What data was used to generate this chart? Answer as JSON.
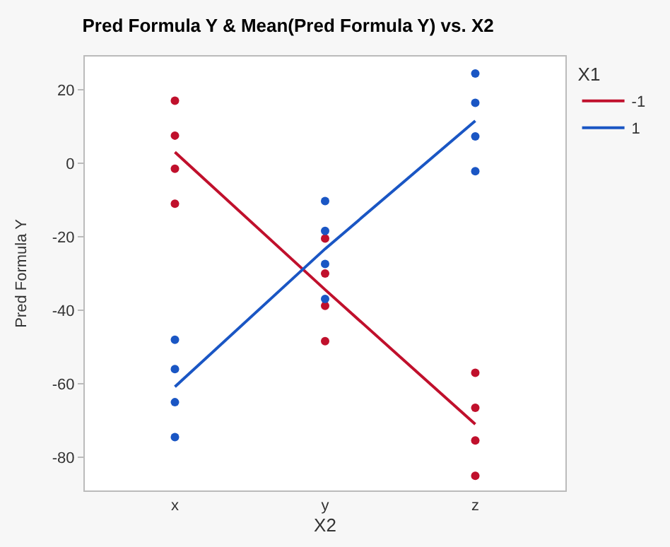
{
  "chart_data": {
    "type": "line",
    "title": "Pred Formula Y & Mean(Pred Formula Y) vs. X2",
    "xlabel": "X2",
    "ylabel": "Pred Formula Y",
    "legend_title": "X1",
    "categories": [
      "x",
      "y",
      "z"
    ],
    "series": [
      {
        "name": "-1",
        "color": "#c0102c",
        "values": [
          3,
          -34.4,
          -71
        ]
      },
      {
        "name": "1",
        "color": "#1a56c4",
        "values": [
          -60.8,
          -23.3,
          11.5
        ]
      },
      {
        "type": "scatter",
        "marker": "circle",
        "color": "#c0102c",
        "x": [
          "x",
          "x",
          "x",
          "x",
          "y",
          "y",
          "y",
          "y",
          "z",
          "z",
          "z",
          "z"
        ],
        "values": [
          17,
          7.5,
          -1.5,
          -11,
          -20.5,
          -30,
          -38.8,
          -48.4,
          -57,
          -66.5,
          -75.4,
          -85
        ]
      },
      {
        "type": "scatter",
        "marker": "circle",
        "color": "#1a56c4",
        "x": [
          "x",
          "x",
          "x",
          "x",
          "y",
          "y",
          "y",
          "y",
          "z",
          "z",
          "z",
          "z"
        ],
        "values": [
          -48,
          -56,
          -65,
          -74.5,
          -10.3,
          -18.4,
          -27.4,
          -36.9,
          24.4,
          16.4,
          7.3,
          -2.2
        ]
      }
    ],
    "ylim": [
      -89,
      29
    ],
    "yticks": [
      -80,
      -60,
      -40,
      -20,
      0,
      20
    ],
    "grid": false,
    "legend": "right"
  }
}
